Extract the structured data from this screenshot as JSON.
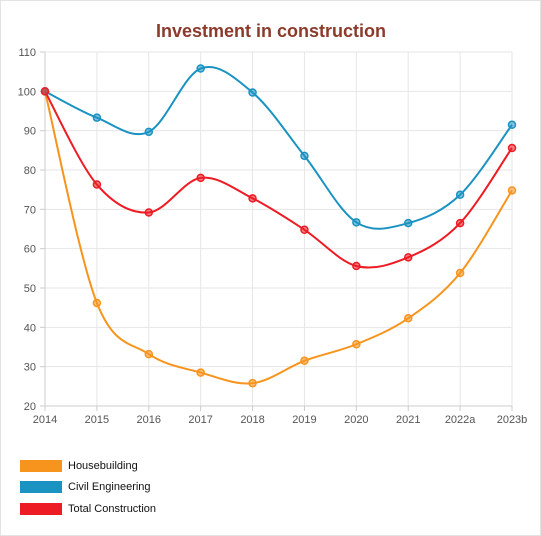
{
  "chart_data": {
    "type": "line",
    "title": "Investment in construction",
    "title_color": "#8b3a2b",
    "categories": [
      "2014",
      "2015",
      "2016",
      "2017",
      "2018",
      "2019",
      "2020",
      "2021",
      "2022a",
      "2023b"
    ],
    "ylim": [
      20,
      110
    ],
    "yticks": [
      "20",
      "30",
      "40",
      "50",
      "60",
      "70",
      "80",
      "90",
      "100",
      "110"
    ],
    "ytick_values": [
      20,
      30,
      40,
      50,
      60,
      70,
      80,
      90,
      100,
      110
    ],
    "grid": true,
    "legend_position": "bottom-left",
    "series": [
      {
        "name": "Housebuilding",
        "color": "#f7941d",
        "values": [
          100,
          46.2,
          33.2,
          28.5,
          25.8,
          31.5,
          35.7,
          42.3,
          53.8,
          74.8
        ]
      },
      {
        "name": "Civil Engineering",
        "color": "#1b93c2",
        "values": [
          100,
          93.3,
          89.7,
          105.8,
          99.7,
          83.6,
          66.7,
          66.5,
          73.7,
          91.5
        ]
      },
      {
        "name": "Total Construction",
        "color": "#ed1c24",
        "values": [
          100,
          76.3,
          69.2,
          78.0,
          72.8,
          64.8,
          55.6,
          57.8,
          66.5,
          85.6
        ]
      }
    ]
  }
}
